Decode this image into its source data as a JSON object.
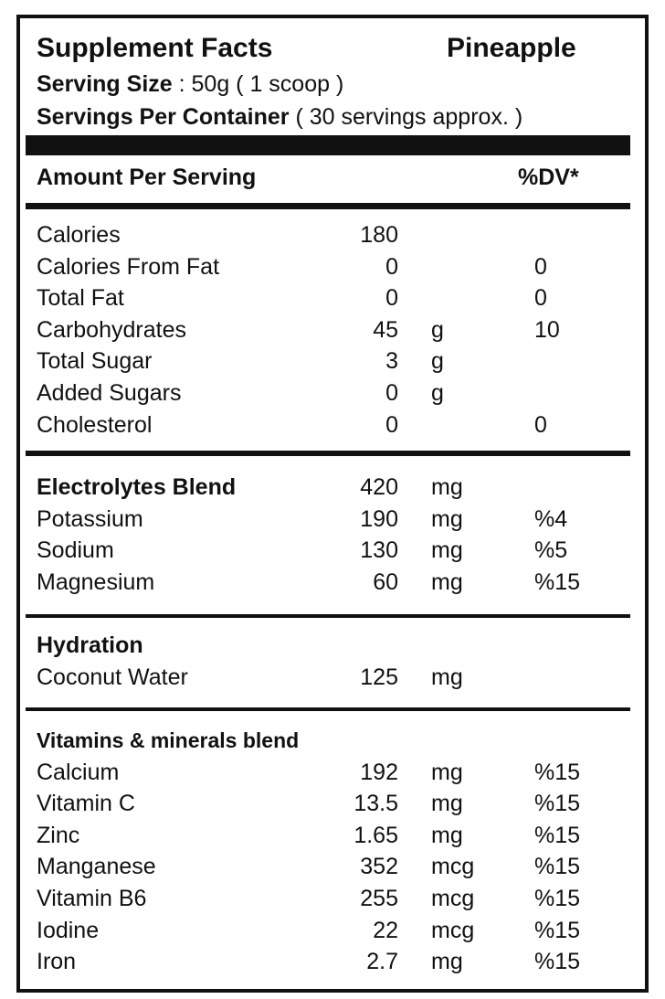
{
  "header": {
    "title": "Supplement Facts",
    "flavor": "Pineapple",
    "serving_size": {
      "label": "Serving Size",
      "value": ": 50g ( 1 scoop )"
    },
    "servings": {
      "label": "Servings Per Container",
      "value": "( 30 servings approx.  )"
    }
  },
  "columns": {
    "amount_per_serving": "Amount Per Serving",
    "dv": "%DV*"
  },
  "sections": [
    {
      "rows": [
        {
          "name": "Calories",
          "amount": "180"
        },
        {
          "name": "Calories From Fat",
          "amount": "0",
          "dv": "0"
        },
        {
          "name": "Total Fat",
          "amount": "0",
          "dv": "0"
        },
        {
          "name": "Carbohydrates",
          "amount": "45",
          "unit": "g",
          "dv": "10"
        },
        {
          "name": "Total Sugar",
          "amount": "3",
          "unit": "g"
        },
        {
          "name": "Added Sugars",
          "amount": "0",
          "unit": "g"
        },
        {
          "name": "Cholesterol",
          "amount": "0",
          "dv": "0"
        }
      ]
    },
    {
      "title": "Electrolytes Blend",
      "title_amount": "420",
      "title_unit": "mg",
      "rows": [
        {
          "name": "Potassium",
          "amount": "190",
          "unit": "mg",
          "dv": "%4"
        },
        {
          "name": "Sodium",
          "amount": "130",
          "unit": "mg",
          "dv": "%5"
        },
        {
          "name": "Magnesium",
          "amount": "60",
          "unit": "mg",
          "dv": "%15"
        }
      ]
    },
    {
      "title": "Hydration",
      "rows": [
        {
          "name": "Coconut Water",
          "amount": "125",
          "unit": "mg"
        }
      ]
    },
    {
      "title": "Vitamins & minerals blend",
      "rows": [
        {
          "name": "Calcium",
          "amount": "192",
          "unit": "mg",
          "dv": "%15"
        },
        {
          "name": "Vitamin C",
          "amount": "13.5",
          "unit": "mg",
          "dv": "%15"
        },
        {
          "name": "Zinc",
          "amount": "1.65",
          "unit": "mg",
          "dv": "%15"
        },
        {
          "name": "Manganese",
          "amount": "352",
          "unit": "mcg",
          "dv": "%15"
        },
        {
          "name": "Vitamin B6",
          "amount": "255",
          "unit": "mcg",
          "dv": "%15"
        },
        {
          "name": "Iodine",
          "amount": "22",
          "unit": "mcg",
          "dv": "%15"
        },
        {
          "name": "Iron",
          "amount": "2.7",
          "unit": "mg",
          "dv": "%15"
        }
      ]
    }
  ]
}
